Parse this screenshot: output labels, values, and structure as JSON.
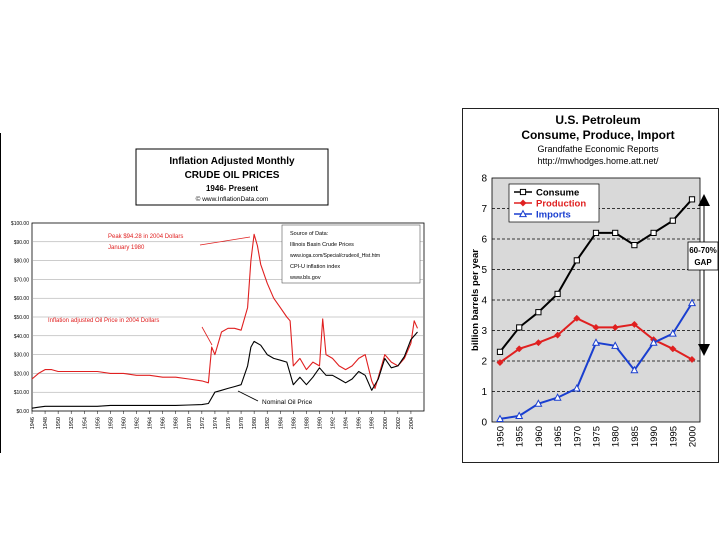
{
  "chart_data": [
    {
      "type": "line",
      "title": "Inflation Adjusted Monthly",
      "subtitle": "CRUDE OIL PRICES",
      "period": "1946- Present",
      "credit": "© www.InflationData.com",
      "ylim": [
        0,
        100
      ],
      "y_ticks": [
        {
          "value": 0,
          "label": "$0.00"
        },
        {
          "value": 10,
          "label": "$10.00"
        },
        {
          "value": 20,
          "label": "$20.00"
        },
        {
          "value": 30,
          "label": "$30.00"
        },
        {
          "value": 40,
          "label": "$40.00"
        },
        {
          "value": 50,
          "label": "$50.00"
        },
        {
          "value": 60,
          "label": "$60.00"
        },
        {
          "value": 70,
          "label": "$70.00"
        },
        {
          "value": 80,
          "label": "$80.00"
        },
        {
          "value": 90,
          "label": "$90.00"
        },
        {
          "value": 100,
          "label": "$100.00"
        }
      ],
      "xlim": [
        1946,
        2006
      ],
      "x_ticks": [
        "1946",
        "1948",
        "1950",
        "1952",
        "1954",
        "1956",
        "1958",
        "1960",
        "1962",
        "1964",
        "1966",
        "1968",
        "1970",
        "1972",
        "1974",
        "1976",
        "1978",
        "1980",
        "1982",
        "1984",
        "1986",
        "1988",
        "1990",
        "1992",
        "1994",
        "1996",
        "1998",
        "2000",
        "2002",
        "2004"
      ],
      "source_box": [
        "Source of Data:",
        "Illinois Basin Crude Prices",
        "www.ioga.com/Special/crudeoil_Hist.htm",
        "CPI-U inflation index",
        "www.bls.gov"
      ],
      "annotations": {
        "peak": [
          "Peak $94.28 in 2004 Dollars",
          "January 1980"
        ],
        "inflation": "Inflation adjusted Oil Price in 2004 Dollars",
        "nominal": "Nominal Oil Price"
      },
      "series": [
        {
          "name": "Inflation adjusted Oil Price in 2004 Dollars",
          "color": "#e02020",
          "x": [
            1946,
            1947,
            1948,
            1949,
            1950,
            1952,
            1954,
            1956,
            1958,
            1960,
            1962,
            1964,
            1966,
            1968,
            1970,
            1972,
            1973,
            1973.5,
            1974,
            1975,
            1976,
            1977,
            1978,
            1979,
            1979.5,
            1980,
            1980.5,
            1981,
            1982,
            1983,
            1984,
            1985,
            1985.5,
            1986,
            1987,
            1988,
            1989,
            1990,
            1990.5,
            1991,
            1992,
            1993,
            1994,
            1995,
            1996,
            1997,
            1998,
            1998.5,
            1999,
            2000,
            2001,
            2002,
            2003,
            2004,
            2004.5,
            2005
          ],
          "values": [
            17,
            20,
            22,
            22,
            21,
            21,
            21,
            21,
            20,
            20,
            19,
            19,
            18,
            18,
            17,
            16,
            15,
            34,
            30,
            42,
            44,
            44,
            43,
            55,
            80,
            94,
            88,
            78,
            68,
            60,
            55,
            50,
            48,
            24,
            28,
            22,
            26,
            24,
            49,
            30,
            28,
            24,
            22,
            24,
            28,
            30,
            16,
            12,
            18,
            30,
            26,
            24,
            28,
            36,
            48,
            44
          ]
        },
        {
          "name": "Nominal Oil Price",
          "color": "#000000",
          "x": [
            1946,
            1947,
            1948,
            1950,
            1952,
            1954,
            1956,
            1958,
            1960,
            1962,
            1964,
            1966,
            1968,
            1970,
            1972,
            1973,
            1974,
            1975,
            1976,
            1977,
            1978,
            1979,
            1979.5,
            1980,
            1981,
            1982,
            1983,
            1984,
            1985,
            1986,
            1987,
            1988,
            1989,
            1990,
            1991,
            1992,
            1993,
            1994,
            1995,
            1996,
            1997,
            1998,
            1999,
            2000,
            2001,
            2002,
            2003,
            2004,
            2005
          ],
          "values": [
            1.5,
            2,
            2.5,
            2.5,
            2.5,
            2.5,
            2.5,
            3,
            3,
            3,
            3,
            3,
            3,
            3.2,
            3.4,
            4,
            10,
            11,
            12,
            13,
            14,
            24,
            34,
            37,
            35,
            30,
            28,
            27,
            26,
            14,
            18,
            14,
            18,
            23,
            19,
            19,
            17,
            15,
            17,
            21,
            19,
            11,
            17,
            28,
            23,
            24,
            29,
            38,
            42
          ]
        }
      ]
    },
    {
      "type": "line",
      "title": "U.S. Petroleum",
      "subtitle": "Consume, Produce, Import",
      "source_line": "Grandfathe Economic Reports",
      "url": "http://mwhodges.home.att.net/",
      "ylabel": "billion barrels per year",
      "ylim": [
        0,
        8
      ],
      "y_ticks": [
        "0",
        "1",
        "2",
        "3",
        "4",
        "5",
        "6",
        "7",
        "8"
      ],
      "categories": [
        "1950",
        "1955",
        "1960",
        "1965",
        "1970",
        "1975",
        "1980",
        "1985",
        "1990",
        "1995",
        "2000"
      ],
      "gap_label": [
        "60-70%",
        "GAP"
      ],
      "series": [
        {
          "name": "Consume",
          "color": "#000000",
          "marker": "square",
          "values": [
            2.3,
            3.1,
            3.6,
            4.2,
            5.3,
            6.2,
            6.2,
            5.8,
            6.2,
            6.6,
            7.3
          ]
        },
        {
          "name": "Production",
          "color": "#e02020",
          "marker": "diamond",
          "values": [
            1.95,
            2.4,
            2.6,
            2.85,
            3.4,
            3.1,
            3.1,
            3.2,
            2.7,
            2.4,
            2.05
          ]
        },
        {
          "name": "Imports",
          "color": "#1a3fd0",
          "marker": "triangle",
          "values": [
            0.1,
            0.2,
            0.6,
            0.8,
            1.1,
            2.6,
            2.5,
            1.7,
            2.6,
            2.9,
            3.9
          ]
        }
      ]
    }
  ]
}
